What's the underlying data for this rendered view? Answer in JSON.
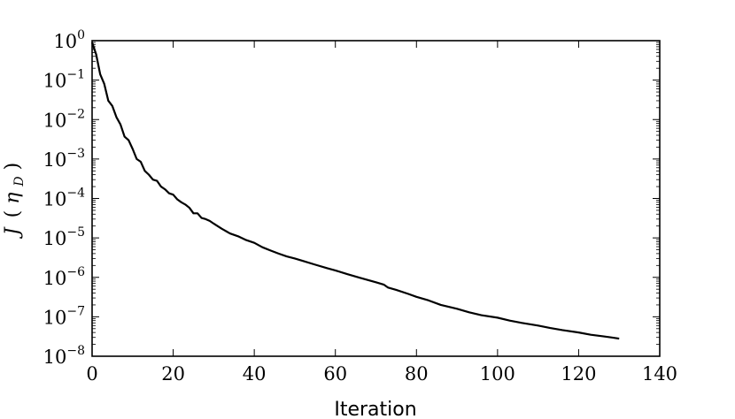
{
  "chart_data": {
    "type": "line",
    "xlabel": "Iteration",
    "ylabel": {
      "main": "J",
      "open_paren": "(",
      "eta": "η",
      "subscript": "D",
      "close_paren": ")"
    },
    "yscale": "log",
    "xlim": [
      0,
      140
    ],
    "ylim": [
      1e-08,
      1
    ],
    "x_ticks": [
      "0",
      "20",
      "40",
      "60",
      "80",
      "100",
      "120",
      "140"
    ],
    "y_ticks": [
      {
        "value": 1,
        "base": "10",
        "exponent": "0"
      },
      {
        "value": 0.1,
        "base": "10",
        "exponent": "−1"
      },
      {
        "value": 0.01,
        "base": "10",
        "exponent": "−2"
      },
      {
        "value": 0.001,
        "base": "10",
        "exponent": "−3"
      },
      {
        "value": 0.0001,
        "base": "10",
        "exponent": "−4"
      },
      {
        "value": 1e-05,
        "base": "10",
        "exponent": "−5"
      },
      {
        "value": 1e-06,
        "base": "10",
        "exponent": "−6"
      },
      {
        "value": 1e-07,
        "base": "10",
        "exponent": "−7"
      },
      {
        "value": 1e-08,
        "base": "10",
        "exponent": "−8"
      }
    ],
    "grid": false,
    "series": [
      {
        "color": "#000000",
        "x": [
          0,
          1,
          2,
          3,
          4,
          5,
          6,
          7,
          8,
          9,
          10,
          11,
          12,
          13,
          14,
          15,
          16,
          17,
          18,
          19,
          20,
          21,
          22,
          23,
          24,
          25,
          26,
          27,
          28,
          29,
          30,
          32,
          34,
          36,
          38,
          40,
          42,
          44,
          46,
          48,
          50,
          52,
          55,
          58,
          60,
          63,
          66,
          70,
          72,
          73,
          75,
          78,
          80,
          83,
          86,
          90,
          93,
          96,
          100,
          103,
          106,
          110,
          113,
          116,
          120,
          123,
          126,
          128,
          130
        ],
        "y": [
          0.9,
          0.45,
          0.14,
          0.08,
          0.03,
          0.022,
          0.0115,
          0.0075,
          0.0037,
          0.003,
          0.0018,
          0.001,
          0.00085,
          0.0005,
          0.0004,
          0.0003,
          0.00028,
          0.0002,
          0.00017,
          0.000135,
          0.000125,
          9.5e-05,
          8e-05,
          7e-05,
          5.8e-05,
          4.2e-05,
          4.2e-05,
          3.2e-05,
          3e-05,
          2.7e-05,
          2.3e-05,
          1.7e-05,
          1.3e-05,
          1.1e-05,
          8.8e-06,
          7.5e-06,
          5.8e-06,
          4.8e-06,
          4e-06,
          3.4e-06,
          3e-06,
          2.6e-06,
          2.1e-06,
          1.7e-06,
          1.5e-06,
          1.2e-06,
          9.8e-07,
          7.5e-07,
          6.5e-07,
          5.5e-07,
          4.8e-07,
          3.8e-07,
          3.2e-07,
          2.6e-07,
          2e-07,
          1.6e-07,
          1.3e-07,
          1.1e-07,
          9.5e-08,
          8e-08,
          7e-08,
          6e-08,
          5.2e-08,
          4.6e-08,
          4e-08,
          3.5e-08,
          3.2e-08,
          3e-08,
          2.8e-08
        ]
      }
    ]
  }
}
